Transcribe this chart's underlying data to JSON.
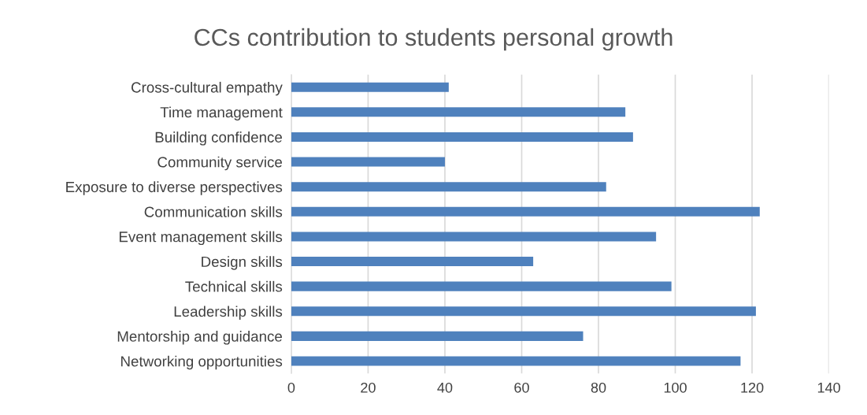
{
  "chart_data": {
    "type": "bar",
    "orientation": "horizontal",
    "title": "CCs contribution to students personal growth",
    "categories": [
      "Cross-cultural empathy",
      "Time management",
      "Building confidence",
      "Community service",
      "Exposure to diverse perspectives",
      "Communication skills",
      "Event management skills",
      "Design skills",
      "Technical skills",
      "Leadership skills",
      "Mentorship and guidance",
      "Networking opportunities"
    ],
    "values": [
      41,
      87,
      89,
      40,
      82,
      122,
      95,
      63,
      99,
      121,
      76,
      117
    ],
    "color": "#4f81bd",
    "xlim": [
      0,
      140
    ],
    "xticks": [
      0,
      20,
      40,
      60,
      80,
      100,
      120,
      140
    ],
    "grid": "x"
  }
}
